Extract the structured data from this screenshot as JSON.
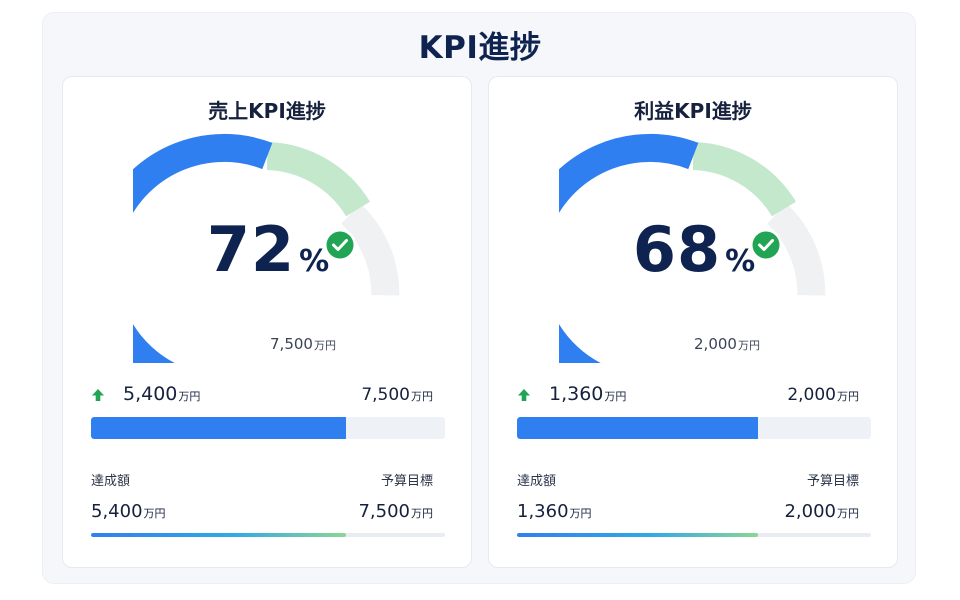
{
  "page": {
    "title": "KPI進捗"
  },
  "colors": {
    "accent": "#2f7ff0",
    "success": "#22a455",
    "arc_green": "#b8e3c2",
    "arc_remaining": "#f0f1f3",
    "title": "#0f2350"
  },
  "cards": [
    {
      "title": "売上KPI進捗",
      "progress_percent": 72,
      "percent_value": "72",
      "percent_sign": "%",
      "gauge_target": {
        "value": "7,500",
        "unit": "万円"
      },
      "achieved": {
        "value": "5,400",
        "unit": "万円"
      },
      "target": {
        "value": "7,500",
        "unit": "万円"
      },
      "achieved_label": "達成額",
      "target_label": "予算目標",
      "icons": {
        "status": "check-circle-icon",
        "trend": "arrow-up-icon"
      }
    },
    {
      "title": "利益KPI進捗",
      "progress_percent": 68,
      "percent_value": "68",
      "percent_sign": "%",
      "gauge_target": {
        "value": "2,000",
        "unit": "万円"
      },
      "achieved": {
        "value": "1,360",
        "unit": "万円"
      },
      "target": {
        "value": "2,000",
        "unit": "万円"
      },
      "achieved_label": "達成額",
      "target_label": "予算目標",
      "icons": {
        "status": "check-circle-icon",
        "trend": "arrow-up-icon"
      }
    }
  ]
}
